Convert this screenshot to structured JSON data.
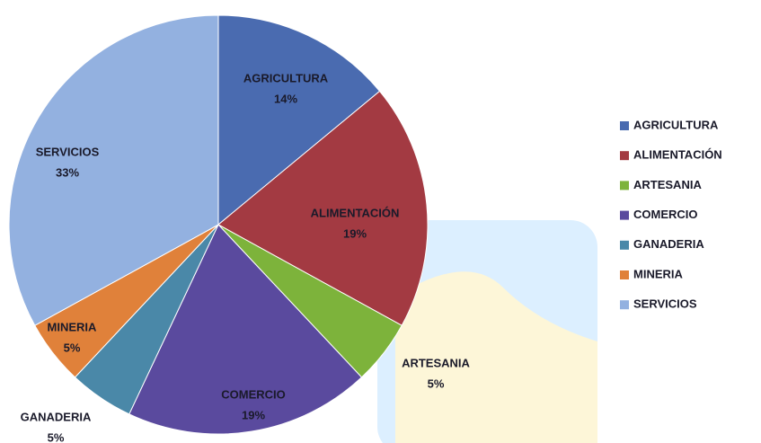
{
  "chart_data": {
    "type": "pie",
    "categories": [
      "AGRICULTURA",
      "ALIMENTACIÓN",
      "ARTESANIA",
      "COMERCIO",
      "GANADERIA",
      "MINERIA",
      "SERVICIOS"
    ],
    "values": [
      14,
      19,
      5,
      19,
      5,
      5,
      33
    ],
    "value_labels": [
      "14%",
      "19%",
      "5%",
      "19%",
      "5%",
      "5%",
      "33%"
    ],
    "colors": [
      "#4a6bb0",
      "#a33a42",
      "#7db33b",
      "#5a4a9e",
      "#4a88a8",
      "#e0813a",
      "#93b1e0"
    ],
    "legend": "right"
  }
}
